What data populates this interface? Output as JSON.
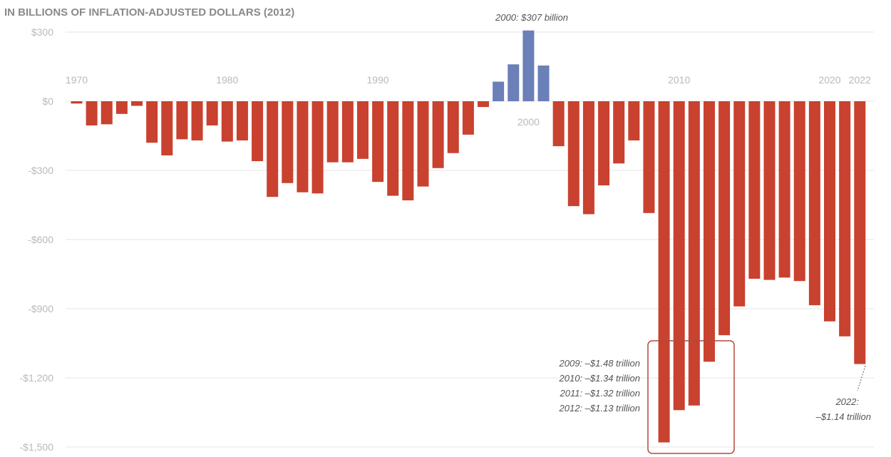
{
  "chart_data": {
    "type": "bar",
    "subtitle": "IN BILLIONS OF INFLATION-ADJUSTED DOLLARS (2012)",
    "ylim": [
      -1500,
      300
    ],
    "y_ticks": [
      300,
      0,
      -300,
      -600,
      -900,
      -1200,
      -1500
    ],
    "y_tick_labels": [
      "$300",
      "$0",
      "-$300",
      "-$600",
      "-$900",
      "-$1,200",
      "-$1,500"
    ],
    "x_tick_years": [
      1970,
      1980,
      1990,
      2000,
      2010,
      2020,
      2022
    ],
    "x_tick_labels": [
      "1970",
      "1980",
      "1990",
      "2000",
      "2010",
      "2020",
      "2022"
    ],
    "grid": true,
    "colors": {
      "surplus": "#6b7fb8",
      "deficit": "#c9412f",
      "grid": "#e6e6e6",
      "tick": "#b9b9b9",
      "annotation_box": "#b04a3a",
      "annotation_text": "#555555"
    },
    "categories": [
      1970,
      1971,
      1972,
      1973,
      1974,
      1975,
      1976,
      1977,
      1978,
      1979,
      1980,
      1981,
      1982,
      1983,
      1984,
      1985,
      1986,
      1987,
      1988,
      1989,
      1990,
      1991,
      1992,
      1993,
      1994,
      1995,
      1996,
      1997,
      1998,
      1999,
      2000,
      2001,
      2002,
      2003,
      2004,
      2005,
      2006,
      2007,
      2008,
      2009,
      2010,
      2011,
      2012,
      2013,
      2014,
      2015,
      2016,
      2017,
      2018,
      2019,
      2020,
      2021,
      2022
    ],
    "values": [
      -10,
      -105,
      -100,
      -55,
      -20,
      -180,
      -235,
      -165,
      -170,
      -105,
      -175,
      -170,
      -260,
      -415,
      -355,
      -395,
      -400,
      -265,
      -265,
      -250,
      -350,
      -410,
      -430,
      -370,
      -290,
      -225,
      -145,
      -25,
      85,
      160,
      307,
      155,
      -195,
      -455,
      -490,
      -365,
      -270,
      -170,
      -485,
      -1480,
      -1340,
      -1320,
      -1130,
      -1015,
      -890,
      -770,
      -775,
      -765,
      -780,
      -885,
      -955,
      -1020,
      -1140
    ],
    "annotations": {
      "peak": "2000: $307 billion",
      "box_lines": [
        "2009: –$1.48 trillion",
        "2010: –$1.34 trillion",
        "2011: –$1.32 trillion",
        "2012: –$1.13 trillion"
      ],
      "last_lines": [
        "2022:",
        "–$1.14 trillion"
      ]
    }
  }
}
